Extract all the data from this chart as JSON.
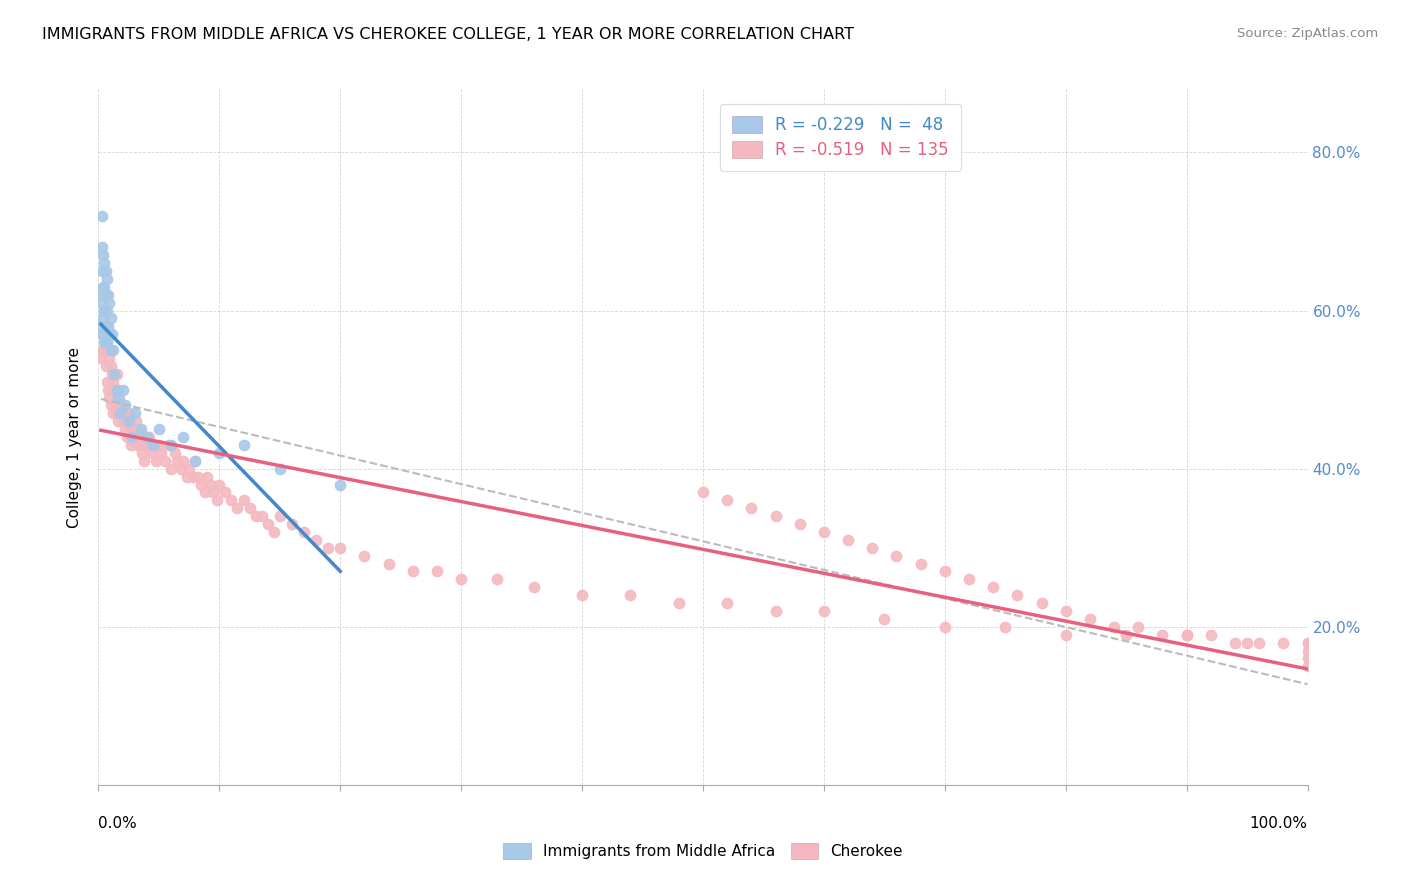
{
  "title": "IMMIGRANTS FROM MIDDLE AFRICA VS CHEROKEE COLLEGE, 1 YEAR OR MORE CORRELATION CHART",
  "source": "Source: ZipAtlas.com",
  "ylabel": "College, 1 year or more",
  "legend_label_1": "Immigrants from Middle Africa",
  "legend_label_2": "Cherokee",
  "R1": -0.229,
  "N1": 48,
  "R2": -0.519,
  "N2": 135,
  "color1": "#a8c8e8",
  "color2": "#f4b8c0",
  "trendline1_color": "#4488cc",
  "trendline2_color": "#e86080",
  "dashed_line_color": "#bbbbbb",
  "xlim": [
    0.0,
    1.0
  ],
  "ylim": [
    0.0,
    0.88
  ],
  "y_ticks": [
    0.2,
    0.4,
    0.6,
    0.8
  ],
  "y_tick_labels_right": [
    "20.0%",
    "40.0%",
    "60.0%",
    "80.0%"
  ],
  "blue_scatter_x": [
    0.002,
    0.002,
    0.003,
    0.003,
    0.003,
    0.003,
    0.003,
    0.004,
    0.004,
    0.004,
    0.005,
    0.005,
    0.005,
    0.005,
    0.006,
    0.006,
    0.006,
    0.007,
    0.007,
    0.007,
    0.008,
    0.008,
    0.009,
    0.009,
    0.01,
    0.01,
    0.011,
    0.012,
    0.013,
    0.015,
    0.016,
    0.018,
    0.02,
    0.022,
    0.025,
    0.028,
    0.03,
    0.035,
    0.04,
    0.045,
    0.05,
    0.06,
    0.07,
    0.08,
    0.1,
    0.12,
    0.15,
    0.2
  ],
  "blue_scatter_y": [
    0.62,
    0.58,
    0.72,
    0.68,
    0.65,
    0.61,
    0.57,
    0.67,
    0.63,
    0.59,
    0.66,
    0.63,
    0.6,
    0.56,
    0.65,
    0.62,
    0.58,
    0.64,
    0.6,
    0.56,
    0.62,
    0.58,
    0.61,
    0.57,
    0.59,
    0.55,
    0.57,
    0.55,
    0.52,
    0.5,
    0.49,
    0.47,
    0.5,
    0.48,
    0.46,
    0.44,
    0.47,
    0.45,
    0.44,
    0.43,
    0.45,
    0.43,
    0.44,
    0.41,
    0.42,
    0.43,
    0.4,
    0.38
  ],
  "pink_scatter_x": [
    0.002,
    0.003,
    0.004,
    0.005,
    0.005,
    0.006,
    0.006,
    0.007,
    0.007,
    0.008,
    0.008,
    0.009,
    0.009,
    0.01,
    0.01,
    0.011,
    0.012,
    0.012,
    0.013,
    0.014,
    0.015,
    0.015,
    0.016,
    0.016,
    0.017,
    0.018,
    0.019,
    0.02,
    0.021,
    0.022,
    0.023,
    0.024,
    0.025,
    0.026,
    0.027,
    0.028,
    0.03,
    0.031,
    0.032,
    0.033,
    0.035,
    0.036,
    0.037,
    0.038,
    0.04,
    0.042,
    0.044,
    0.046,
    0.048,
    0.05,
    0.052,
    0.055,
    0.058,
    0.06,
    0.063,
    0.065,
    0.068,
    0.07,
    0.073,
    0.075,
    0.078,
    0.08,
    0.082,
    0.085,
    0.088,
    0.09,
    0.093,
    0.095,
    0.098,
    0.1,
    0.105,
    0.11,
    0.115,
    0.12,
    0.125,
    0.13,
    0.135,
    0.14,
    0.145,
    0.15,
    0.16,
    0.17,
    0.18,
    0.19,
    0.2,
    0.22,
    0.24,
    0.26,
    0.28,
    0.3,
    0.33,
    0.36,
    0.4,
    0.44,
    0.48,
    0.52,
    0.56,
    0.6,
    0.65,
    0.7,
    0.75,
    0.8,
    0.85,
    0.9,
    0.95,
    1.0,
    0.5,
    0.52,
    0.54,
    0.56,
    0.58,
    0.6,
    0.62,
    0.64,
    0.66,
    0.68,
    0.7,
    0.72,
    0.74,
    0.76,
    0.78,
    0.8,
    0.82,
    0.84,
    0.86,
    0.88,
    0.9,
    0.92,
    0.94,
    0.96,
    0.98,
    1.0,
    1.0,
    1.0,
    1.0
  ],
  "pink_scatter_y": [
    0.54,
    0.57,
    0.55,
    0.6,
    0.55,
    0.58,
    0.53,
    0.56,
    0.51,
    0.55,
    0.5,
    0.54,
    0.49,
    0.53,
    0.48,
    0.52,
    0.51,
    0.47,
    0.5,
    0.48,
    0.52,
    0.47,
    0.5,
    0.46,
    0.49,
    0.47,
    0.48,
    0.46,
    0.47,
    0.45,
    0.46,
    0.44,
    0.47,
    0.45,
    0.43,
    0.45,
    0.44,
    0.46,
    0.43,
    0.45,
    0.44,
    0.42,
    0.43,
    0.41,
    0.43,
    0.44,
    0.42,
    0.43,
    0.41,
    0.43,
    0.42,
    0.41,
    0.43,
    0.4,
    0.42,
    0.41,
    0.4,
    0.41,
    0.39,
    0.4,
    0.39,
    0.41,
    0.39,
    0.38,
    0.37,
    0.39,
    0.38,
    0.37,
    0.36,
    0.38,
    0.37,
    0.36,
    0.35,
    0.36,
    0.35,
    0.34,
    0.34,
    0.33,
    0.32,
    0.34,
    0.33,
    0.32,
    0.31,
    0.3,
    0.3,
    0.29,
    0.28,
    0.27,
    0.27,
    0.26,
    0.26,
    0.25,
    0.24,
    0.24,
    0.23,
    0.23,
    0.22,
    0.22,
    0.21,
    0.2,
    0.2,
    0.19,
    0.19,
    0.19,
    0.18,
    0.18,
    0.37,
    0.36,
    0.35,
    0.34,
    0.33,
    0.32,
    0.31,
    0.3,
    0.29,
    0.28,
    0.27,
    0.26,
    0.25,
    0.24,
    0.23,
    0.22,
    0.21,
    0.2,
    0.2,
    0.19,
    0.19,
    0.19,
    0.18,
    0.18,
    0.18,
    0.18,
    0.17,
    0.16,
    0.15
  ]
}
